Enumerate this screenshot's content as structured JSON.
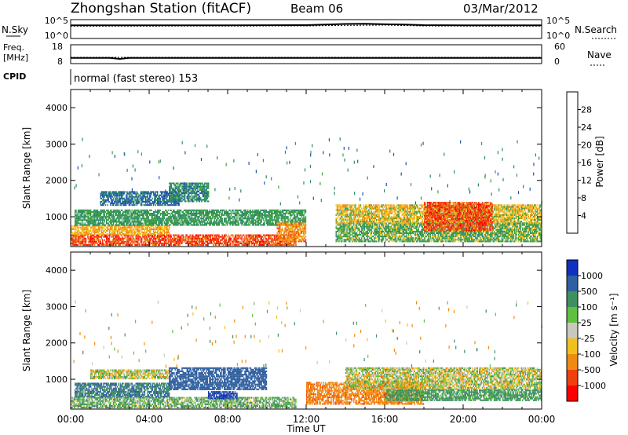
{
  "header": {
    "station": "Zhongshan Station (fitACF)",
    "beam": "Beam 06",
    "date": "03/Mar/2012",
    "mode": "normal (fast stereo) 153"
  },
  "noise_panel": {
    "left_label": "N.Sky",
    "left_ticks": [
      "10^5",
      "10^0"
    ],
    "right_ticks": [
      "10^5",
      "10^0"
    ],
    "right_label": "N.Search"
  },
  "freq_panel": {
    "left_label_1": "Freq.",
    "left_label_2": "[MHz]",
    "left_ticks": [
      "18",
      "8"
    ],
    "right_ticks": [
      "60",
      "0"
    ],
    "right_label": "Nave"
  },
  "cpid_label": "CPID",
  "x_axis": {
    "label": "Time UT",
    "ticks": [
      "00:00",
      "04:00",
      "08:00",
      "12:00",
      "16:00",
      "20:00",
      "00:00"
    ]
  },
  "power_colorbar": {
    "label": "Power [dB]",
    "ticks": [
      "4",
      "8",
      "12",
      "16",
      "20",
      "24",
      "28"
    ],
    "colors": [
      "#0000ff",
      "#2050b0",
      "#2a8a6a",
      "#3ea040",
      "#f0c020",
      "#f08a10",
      "#f04010",
      "#ff0000"
    ]
  },
  "velocity_colorbar": {
    "label": "Velocity [m s⁻¹]",
    "ticks": [
      "1000",
      "500",
      "100",
      "25",
      "-25",
      "-100",
      "-500",
      "-1000"
    ],
    "colors": [
      "#1030c0",
      "#3060a0",
      "#3f9060",
      "#60c040",
      "#c8c8c0",
      "#f0c020",
      "#f08a10",
      "#f04010",
      "#ff0000"
    ]
  },
  "chart_data": [
    {
      "type": "line",
      "title": "N.Sky / N.Search",
      "x_range": [
        "00:00",
        "24:00"
      ],
      "y_scale": "log",
      "ylim": [
        1,
        100000
      ],
      "series": [
        {
          "name": "N.Sky",
          "x": [
            0,
            2,
            4,
            6,
            8,
            10,
            12,
            13,
            14,
            15,
            16,
            17,
            18,
            20,
            22,
            24
          ],
          "y": [
            3000,
            3000,
            3200,
            3000,
            3200,
            3300,
            3500,
            5000,
            7000,
            8000,
            6000,
            5000,
            3500,
            3200,
            3000,
            3000
          ]
        },
        {
          "name": "N.Search",
          "x": [
            0,
            4,
            8,
            12,
            14,
            16,
            18,
            20,
            24
          ],
          "y": [
            2000,
            2000,
            2100,
            2200,
            3000,
            3500,
            2200,
            2000,
            2000
          ]
        }
      ]
    },
    {
      "type": "line",
      "title": "Freq. / Nave",
      "x_range": [
        "00:00",
        "24:00"
      ],
      "ylim_left": [
        8,
        18
      ],
      "ylim_right": [
        0,
        60
      ],
      "series": [
        {
          "name": "Freq.",
          "x": [
            0,
            2,
            2.5,
            3,
            4,
            8,
            12,
            16,
            20,
            24
          ],
          "y": [
            11,
            11,
            10.5,
            11,
            11,
            11,
            11,
            11,
            11,
            11
          ]
        },
        {
          "name": "Nave",
          "x": [
            0,
            4,
            8,
            12,
            16,
            20,
            24
          ],
          "y": [
            20,
            20,
            20,
            20,
            20,
            20,
            20
          ]
        }
      ]
    },
    {
      "type": "heatmap",
      "title": "Power [dB]",
      "xlabel": "Time UT",
      "ylabel": "Slant Range [km]",
      "x_range_hours": [
        0,
        24
      ],
      "ylim": [
        180,
        4500
      ],
      "y_ticks": [
        1000,
        2000,
        3000,
        4000
      ],
      "regions": [
        {
          "t0": 0.0,
          "t1": 11.5,
          "r0": 200,
          "r1": 500,
          "value": 26
        },
        {
          "t0": 0.0,
          "t1": 5.0,
          "r0": 500,
          "r1": 750,
          "value": 20
        },
        {
          "t0": 0.2,
          "t1": 12.0,
          "r0": 750,
          "r1": 1200,
          "value": 12
        },
        {
          "t0": 1.5,
          "t1": 5.5,
          "r0": 1300,
          "r1": 1700,
          "value": 8
        },
        {
          "t0": 5.0,
          "t1": 7.0,
          "r0": 1400,
          "r1": 1900,
          "value": 10
        },
        {
          "t0": 13.5,
          "t1": 24.0,
          "r0": 300,
          "r1": 800,
          "value": 14
        },
        {
          "t0": 13.5,
          "t1": 24.0,
          "r0": 800,
          "r1": 1300,
          "value": 18
        },
        {
          "t0": 18.0,
          "t1": 21.5,
          "r0": 600,
          "r1": 1400,
          "value": 26
        },
        {
          "t0": 10.5,
          "t1": 12.0,
          "r0": 300,
          "r1": 800,
          "value": 22
        }
      ]
    },
    {
      "type": "heatmap",
      "title": "Velocity [m s⁻¹]",
      "xlabel": "Time UT",
      "ylabel": "Slant Range [km]",
      "x_range_hours": [
        0,
        24
      ],
      "ylim": [
        180,
        4500
      ],
      "y_ticks": [
        1000,
        2000,
        3000,
        4000
      ],
      "regions": [
        {
          "t0": 0.0,
          "t1": 11.5,
          "r0": 200,
          "r1": 500,
          "value": 100
        },
        {
          "t0": 0.2,
          "t1": 5.0,
          "r0": 500,
          "r1": 900,
          "value": 500
        },
        {
          "t0": 1.0,
          "t1": 5.0,
          "r0": 1000,
          "r1": 1250,
          "value": 0
        },
        {
          "t0": 5.0,
          "t1": 10.0,
          "r0": 700,
          "r1": 1300,
          "value": 700
        },
        {
          "t0": 7.0,
          "t1": 8.5,
          "r0": 450,
          "r1": 650,
          "value": 1000
        },
        {
          "t0": 12.0,
          "t1": 18.0,
          "r0": 300,
          "r1": 900,
          "value": -400
        },
        {
          "t0": 14.0,
          "t1": 24.0,
          "r0": 700,
          "r1": 1300,
          "value": 0
        },
        {
          "t0": 16.0,
          "t1": 24.0,
          "r0": 400,
          "r1": 700,
          "value": 200
        }
      ]
    }
  ]
}
